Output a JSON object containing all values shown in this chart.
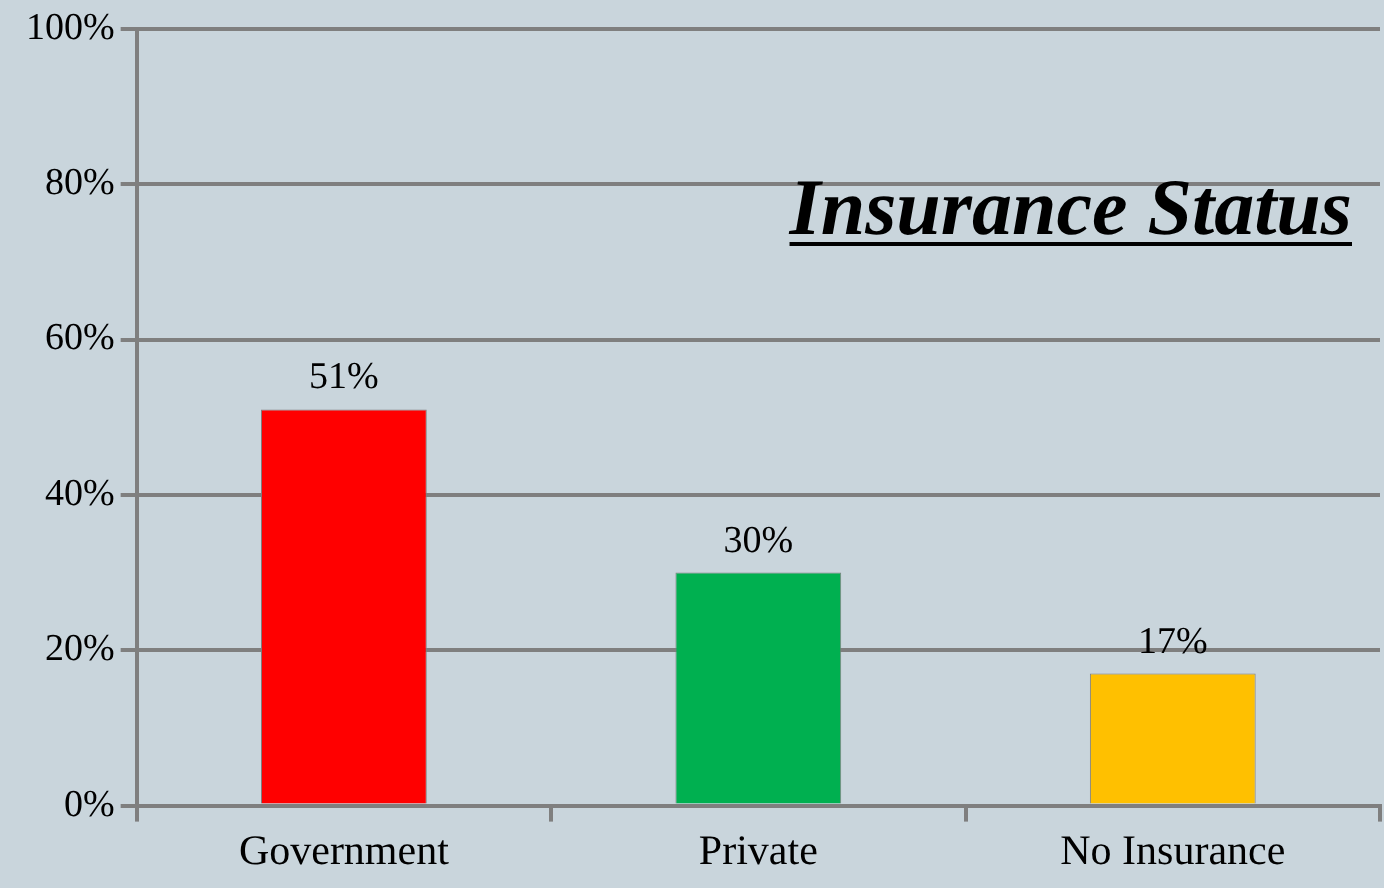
{
  "chart_data": {
    "type": "bar",
    "title": "Insurance Status",
    "categories": [
      "Government",
      "Private",
      "No Insurance"
    ],
    "values": [
      51,
      30,
      17
    ],
    "colors": [
      "#ff0000",
      "#00b050",
      "#ffc000"
    ],
    "value_labels": [
      "51%",
      "30%",
      "17%"
    ],
    "ylim": [
      0,
      100
    ],
    "yticks": [
      {
        "value": 0,
        "label": "0%"
      },
      {
        "value": 20,
        "label": "20%"
      },
      {
        "value": 40,
        "label": "40%"
      },
      {
        "value": 60,
        "label": "60%"
      },
      {
        "value": 80,
        "label": "80%"
      },
      {
        "value": 100,
        "label": "100%"
      }
    ],
    "grid": "y",
    "legend": false
  }
}
